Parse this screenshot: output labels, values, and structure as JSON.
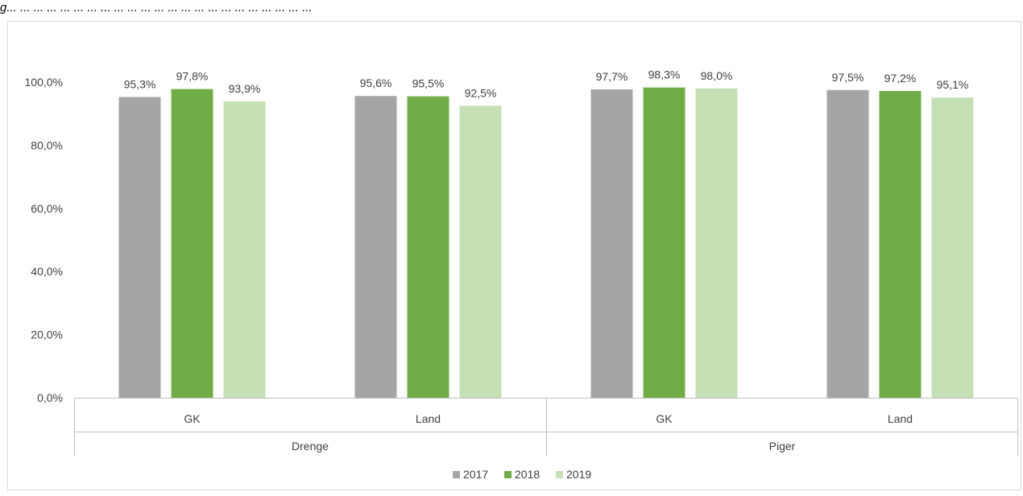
{
  "caption": "g... ... ... ... ... ... ... ... ... ... ... ... ... ... ... ... ... ... ... ... ... ... ...",
  "colors": {
    "2017": "#a5a5a5",
    "2018": "#70ad47",
    "2019": "#c5e0b4",
    "axis": "#bfbfbf",
    "text": "#404040"
  },
  "chart_data": {
    "type": "bar",
    "categories": [
      "GK",
      "Land",
      "GK",
      "Land"
    ],
    "groups": [
      {
        "label": "Drenge",
        "categories": [
          "GK",
          "Land"
        ]
      },
      {
        "label": "Piger",
        "categories": [
          "GK",
          "Land"
        ]
      }
    ],
    "series": [
      {
        "name": "2017",
        "values": [
          95.3,
          95.6,
          97.7,
          97.5
        ],
        "labels": [
          "95,3%",
          "95,6%",
          "97,7%",
          "97,5%"
        ]
      },
      {
        "name": "2018",
        "values": [
          97.8,
          95.5,
          98.3,
          97.2
        ],
        "labels": [
          "97,8%",
          "95,5%",
          "98,3%",
          "97,2%"
        ]
      },
      {
        "name": "2019",
        "values": [
          93.9,
          92.5,
          98.0,
          95.1
        ],
        "labels": [
          "93,9%",
          "92,5%",
          "98,0%",
          "95,1%"
        ]
      }
    ],
    "yticks": [
      0,
      20,
      40,
      60,
      80,
      100
    ],
    "ytick_labels": [
      "0,0%",
      "20,0%",
      "40,0%",
      "60,0%",
      "80,0%",
      "100,0%"
    ],
    "ylim": [
      0,
      100
    ],
    "grid": false,
    "legend": {
      "position": "bottom",
      "entries": [
        "2017",
        "2018",
        "2019"
      ]
    }
  }
}
